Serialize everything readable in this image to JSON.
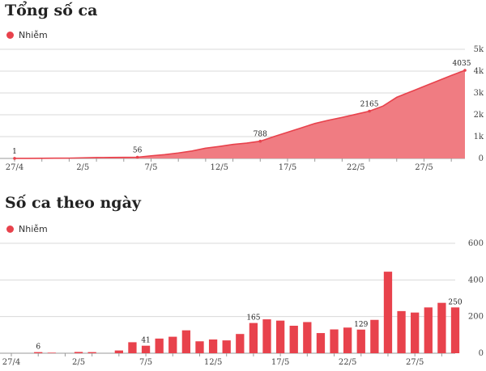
{
  "colors": {
    "series": "#e8424c",
    "area_fill": "#f07c82"
  },
  "chart_data": [
    {
      "type": "area",
      "title": "Tổng số ca",
      "legend": [
        "Nhiễm"
      ],
      "series": [
        {
          "name": "Nhiễm"
        }
      ],
      "x": [
        "27/4",
        "28/4",
        "29/4",
        "30/4",
        "1/5",
        "2/5",
        "3/5",
        "4/5",
        "5/5",
        "6/5",
        "7/5",
        "8/5",
        "9/5",
        "10/5",
        "11/5",
        "12/5",
        "13/5",
        "14/5",
        "15/5",
        "16/5",
        "17/5",
        "18/5",
        "19/5",
        "20/5",
        "21/5",
        "22/5",
        "23/5",
        "24/5",
        "25/5",
        "26/5",
        "27/5",
        "28/5",
        "29/5",
        "30/5"
      ],
      "values": [
        1,
        2,
        8,
        11,
        14,
        28,
        38,
        45,
        50,
        56,
        120,
        175,
        250,
        340,
        470,
        550,
        640,
        700,
        788,
        1000,
        1200,
        1400,
        1600,
        1750,
        1880,
        2020,
        2165,
        2400,
        2800,
        3050,
        3300,
        3550,
        3800,
        4035
      ],
      "ylim": [
        0,
        5000
      ],
      "yticks": [
        "0",
        "1k",
        "2k",
        "3k",
        "4k",
        "5k"
      ],
      "xtick_labels": [
        "27/4",
        "2/5",
        "7/5",
        "12/5",
        "17/5",
        "22/5",
        "27/5"
      ],
      "data_labels": [
        {
          "index": 0,
          "text": "1"
        },
        {
          "index": 9,
          "text": "56"
        },
        {
          "index": 18,
          "text": "788"
        },
        {
          "index": 26,
          "text": "2165"
        },
        {
          "index": 33,
          "text": "4035"
        }
      ],
      "grid": true
    },
    {
      "type": "bar",
      "title": "Số ca theo ngày",
      "legend": [
        "Nhiễm"
      ],
      "series": [
        {
          "name": "Nhiễm"
        }
      ],
      "x": [
        "27/4",
        "28/4",
        "29/4",
        "30/4",
        "1/5",
        "2/5",
        "3/5",
        "4/5",
        "5/5",
        "6/5",
        "7/5",
        "8/5",
        "9/5",
        "10/5",
        "11/5",
        "12/5",
        "13/5",
        "14/5",
        "15/5",
        "16/5",
        "17/5",
        "18/5",
        "19/5",
        "20/5",
        "21/5",
        "22/5",
        "23/5",
        "24/5",
        "25/5",
        "26/5",
        "27/5",
        "28/5",
        "29/5",
        "30/5"
      ],
      "values": [
        0,
        0,
        6,
        3,
        0,
        7,
        6,
        0,
        15,
        60,
        41,
        80,
        90,
        125,
        65,
        75,
        70,
        105,
        165,
        185,
        178,
        150,
        170,
        110,
        130,
        140,
        129,
        182,
        445,
        230,
        222,
        250,
        275,
        250
      ],
      "ylim": [
        0,
        600
      ],
      "yticks": [
        "0",
        "200",
        "400",
        "600"
      ],
      "xtick_labels": [
        "27/4",
        "2/5",
        "7/5",
        "12/5",
        "17/5",
        "22/5",
        "27/5"
      ],
      "data_labels": [
        {
          "index": 2,
          "text": "6"
        },
        {
          "index": 10,
          "text": "41"
        },
        {
          "index": 18,
          "text": "165"
        },
        {
          "index": 26,
          "text": "129"
        },
        {
          "index": 33,
          "text": "250"
        }
      ],
      "grid": true
    }
  ]
}
